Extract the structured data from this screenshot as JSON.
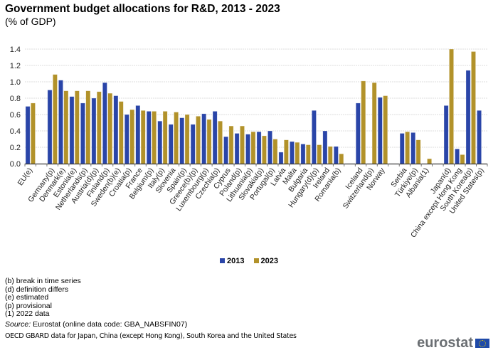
{
  "header": {
    "title": "Government budget allocations for R&D, 2013 - 2023",
    "subtitle": "(% of GDP)"
  },
  "legend": [
    {
      "label": "2013",
      "color": "#2a45a8"
    },
    {
      "label": "2023",
      "color": "#b2922a"
    }
  ],
  "notes": [
    "(b) break in time series",
    "(d) definition differs",
    "(e) estimated",
    "(p) provisional",
    "(1) 2022 data"
  ],
  "source": {
    "label": "Source:",
    "text": " Eurostat (online data code: GBA_NABSFIN07)"
  },
  "oecd_note": "OECD GBARD data for Japan, China (except Hong Kong), South Korea and the United States",
  "logo": {
    "text": "eurostat",
    "icon": "eu-flag-icon"
  },
  "chart_data": {
    "type": "bar",
    "title": "Government budget allocations for R&D, 2013 - 2023",
    "subtitle": "(% of GDP)",
    "xlabel": "",
    "ylabel": "",
    "ylim": [
      0,
      1.4
    ],
    "yticks": [
      "0.0",
      "0.2",
      "0.4",
      "0.6",
      "0.8",
      "1.0",
      "1.2",
      "1.4"
    ],
    "grid": true,
    "legend_position": "bottom-center",
    "categories": [
      "EU(e)",
      "",
      "Germany(p)",
      "Denmark(e)",
      "Estonia(e)",
      "Netherlands(p)",
      "Austria(d)(p)",
      "Finland(p)",
      "Sweden(b)(e)",
      "Croatia(p)",
      "France",
      "Belgium(p)",
      "Italy(p)",
      "Slovenia",
      "Spain(p)",
      "Greece(b)(p)",
      "Luxembourg(p)",
      "Czechia(p)",
      "Cyprus",
      "Poland(p)",
      "Lithuania(p)",
      "Slovakia(p)",
      "Portugal(p)",
      "Latvia",
      "Malta",
      "Bulgaria",
      "Hungary(d)(p)",
      "Ireland",
      "Romania(b)",
      "",
      "Iceland",
      "Switzerland(p)",
      "Norway",
      "",
      "Serbia",
      "Türkiye(p)",
      "Albania(1)",
      "",
      "Japan(d)",
      "China except Hong Kong",
      "South Korea(p)",
      "United States(p)"
    ],
    "series": [
      {
        "name": "2013",
        "color": "#2a45a8",
        "values": [
          0.7,
          null,
          0.9,
          1.02,
          0.82,
          0.74,
          0.8,
          0.99,
          0.83,
          0.6,
          0.71,
          0.64,
          0.52,
          0.48,
          0.56,
          0.48,
          0.61,
          0.64,
          0.33,
          0.37,
          0.36,
          0.39,
          0.4,
          0.14,
          0.27,
          0.24,
          0.65,
          0.4,
          0.21,
          null,
          0.74,
          null,
          0.81,
          null,
          0.37,
          0.38,
          null,
          null,
          0.71,
          0.18,
          1.14,
          0.65
        ]
      },
      {
        "name": "2023",
        "color": "#b2922a",
        "values": [
          0.74,
          null,
          1.09,
          0.89,
          0.89,
          0.89,
          0.88,
          0.86,
          0.76,
          0.66,
          0.65,
          0.64,
          0.64,
          0.63,
          0.6,
          0.58,
          0.54,
          0.52,
          0.46,
          0.46,
          0.39,
          0.34,
          0.3,
          0.29,
          0.26,
          0.23,
          0.23,
          0.21,
          0.12,
          null,
          1.01,
          0.99,
          0.83,
          null,
          0.39,
          0.29,
          0.06,
          null,
          1.4,
          0.11,
          1.37,
          null
        ]
      }
    ]
  }
}
